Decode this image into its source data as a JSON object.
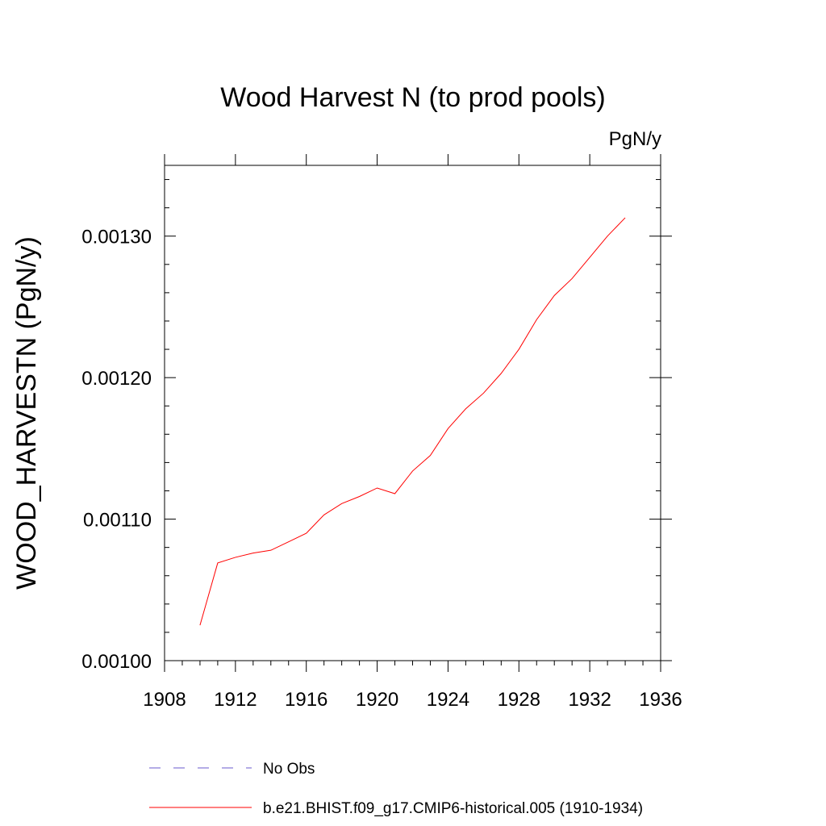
{
  "chart_data": {
    "type": "line",
    "title": "Wood Harvest N (to prod pools)",
    "units": "PgN/y",
    "xlabel": "",
    "ylabel": "WOOD_HARVESTN  (PgN/y)",
    "xlim": [
      1908,
      1936
    ],
    "ylim": [
      0.001,
      0.00135
    ],
    "xticks": [
      1908,
      1912,
      1916,
      1920,
      1924,
      1928,
      1932,
      1936
    ],
    "xtick_labels": [
      "1908",
      "1912",
      "1916",
      "1920",
      "1924",
      "1928",
      "1932",
      "1936"
    ],
    "yticks": [
      0.001,
      0.0011,
      0.0012,
      0.0013
    ],
    "ytick_labels": [
      "0.00100",
      "0.00110",
      "0.00120",
      "0.00130"
    ],
    "grid": false,
    "legend_position": "bottom",
    "series": [
      {
        "name": "b.e21.BHIST.f09_g17.CMIP6-historical.005 (1910-1934)",
        "color": "#ff0000",
        "style": "solid",
        "x": [
          1910,
          1911,
          1912,
          1913,
          1914,
          1915,
          1916,
          1917,
          1918,
          1919,
          1920,
          1921,
          1922,
          1923,
          1924,
          1925,
          1926,
          1927,
          1928,
          1929,
          1930,
          1931,
          1932,
          1933,
          1934
        ],
        "y": [
          0.001025,
          0.001069,
          0.001073,
          0.001076,
          0.001078,
          0.001084,
          0.00109,
          0.001103,
          0.001111,
          0.001116,
          0.001122,
          0.001118,
          0.001134,
          0.001145,
          0.001164,
          0.001178,
          0.001189,
          0.001203,
          0.00122,
          0.001241,
          0.001258,
          0.00127,
          0.001285,
          0.0013,
          0.001313
        ]
      }
    ],
    "legend": [
      {
        "label": "No Obs",
        "color": "#6a5acd",
        "style": "dashed"
      },
      {
        "label": "b.e21.BHIST.f09_g17.CMIP6-historical.005 (1910-1934)",
        "color": "#ff0000",
        "style": "solid"
      }
    ]
  }
}
